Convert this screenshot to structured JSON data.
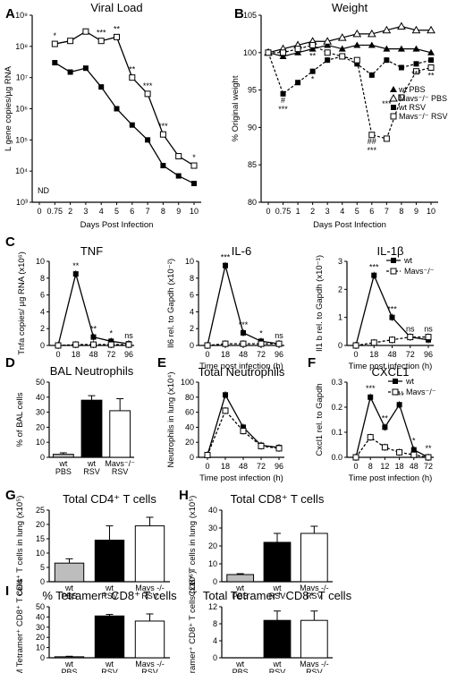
{
  "figure": {
    "panels": [
      "A",
      "B",
      "C",
      "D",
      "E",
      "F",
      "G",
      "H",
      "I"
    ]
  },
  "chart_data": [
    {
      "id": "A",
      "type": "line",
      "title": "Viral Load",
      "xlabel": "Days Post Infection",
      "ylabel": "L gene copies/µg RNA",
      "yscale": "log",
      "ylim": [
        1000,
        1000000000
      ],
      "yticks": [
        "10³",
        "10⁴",
        "10⁵",
        "10⁶",
        "10⁷",
        "10⁸",
        "10⁹"
      ],
      "categories": [
        "0",
        "0.75",
        "2",
        "3",
        "4",
        "5",
        "6",
        "7",
        "8",
        "9",
        "10"
      ],
      "series": [
        {
          "name": "wt",
          "values": [
            null,
            30000000,
            15000000,
            20000000,
            5000000,
            1000000,
            300000,
            100000,
            15000,
            7000,
            4000
          ],
          "marker": "filled"
        },
        {
          "name": "Mavs-/-",
          "values": [
            null,
            120000000,
            150000000,
            300000000,
            150000000,
            200000000,
            10000000,
            3000000,
            150000,
            30000,
            15000
          ],
          "marker": "open"
        }
      ],
      "annotations": [
        "ND",
        "*",
        "***",
        "**",
        "**",
        "***",
        "***",
        "*"
      ]
    },
    {
      "id": "B",
      "type": "line",
      "title": "Weight",
      "xlabel": "Days Post Infection",
      "ylabel": "% Original weight",
      "ylim": [
        80,
        105
      ],
      "yticks": [
        "80",
        "85",
        "90",
        "95",
        "100",
        "105"
      ],
      "categories": [
        "0",
        "0.75",
        "1",
        "2",
        "3",
        "4",
        "5",
        "6",
        "7",
        "8",
        "9",
        "10"
      ],
      "series": [
        {
          "name": "wt PBS",
          "values": [
            100,
            99.5,
            100,
            100.5,
            101,
            100.5,
            101,
            101,
            100.5,
            100.5,
            100.5,
            100
          ]
        },
        {
          "name": "Mavs-/- PBS",
          "values": [
            100,
            100.5,
            101,
            101.5,
            101.5,
            102,
            102.5,
            102.5,
            103,
            103.5,
            103,
            103
          ]
        },
        {
          "name": "wt RSV",
          "values": [
            100,
            94.5,
            96,
            97.5,
            99,
            99.5,
            98.5,
            97,
            99,
            98,
            98.5,
            99
          ]
        },
        {
          "name": "Mavs-/- RSV",
          "values": [
            100,
            100,
            100.5,
            101,
            100,
            99.5,
            99,
            89,
            88.5,
            94,
            97.5,
            98
          ]
        }
      ],
      "legend": [
        "wt PBS",
        "Mavs⁻/⁻ PBS",
        "wt RSV",
        "Mavs⁻/⁻ RSV"
      ],
      "legend_position": "right",
      "annotations": [
        "#",
        "***",
        "*",
        "**",
        "##",
        "***",
        "***",
        "***",
        "**"
      ]
    },
    {
      "id": "C1",
      "type": "line",
      "title": "TNF",
      "xlabel": "",
      "ylabel": "Tnfa copies/ µg RNA (x10⁶)",
      "ylim": [
        0,
        10
      ],
      "yticks": [
        "0",
        "2",
        "4",
        "6",
        "8",
        "10"
      ],
      "categories": [
        "0",
        "18",
        "48",
        "72",
        "96"
      ],
      "series": [
        {
          "name": "wt",
          "values": [
            0,
            8.5,
            1.0,
            0.5,
            0.2
          ]
        },
        {
          "name": "Mavs-/-",
          "values": [
            0,
            0.1,
            0.1,
            0.1,
            0.1
          ]
        }
      ],
      "annotations": [
        "**",
        "**",
        "*",
        "ns"
      ]
    },
    {
      "id": "C2",
      "type": "line",
      "title": "IL-6",
      "xlabel": "Time post infection (h)",
      "ylabel": "Il6 rel. to Gapdh (x10⁻²)",
      "ylim": [
        0,
        10
      ],
      "yticks": [
        "0",
        "2",
        "4",
        "6",
        "8",
        "10"
      ],
      "categories": [
        "0",
        "18",
        "48",
        "72",
        "96"
      ],
      "series": [
        {
          "name": "wt",
          "values": [
            0,
            9.5,
            1.5,
            0.5,
            0.2
          ]
        },
        {
          "name": "Mavs-/-",
          "values": [
            0,
            0.2,
            0.2,
            0.2,
            0.2
          ]
        }
      ],
      "annotations": [
        "***",
        "***",
        "*",
        "ns"
      ]
    },
    {
      "id": "C3",
      "type": "line",
      "title": "IL-1β",
      "xlabel": "Time post infection (h)",
      "ylabel": "Il1 b rel. to Gapdh (x10⁻¹)",
      "ylim": [
        0,
        3
      ],
      "yticks": [
        "0",
        "1",
        "2",
        "3"
      ],
      "categories": [
        "0",
        "18",
        "48",
        "72",
        "96"
      ],
      "series": [
        {
          "name": "wt",
          "values": [
            0,
            2.5,
            1.0,
            0.3,
            0.2
          ]
        },
        {
          "name": "Mavs-/-",
          "values": [
            0,
            0.1,
            0.2,
            0.3,
            0.3
          ]
        }
      ],
      "legend": [
        "wt",
        "Mavs⁻/⁻"
      ],
      "legend_position": "top-right",
      "annotations": [
        "***",
        "***",
        "ns",
        "ns"
      ]
    },
    {
      "id": "D",
      "type": "bar",
      "title": "BAL Neutrophils",
      "ylabel": "% of BAL cells",
      "ylim": [
        0,
        50
      ],
      "yticks": [
        "0",
        "10",
        "20",
        "30",
        "40",
        "50"
      ],
      "categories": [
        "wt PBS",
        "wt RSV",
        "Mavs⁻/⁻ RSV"
      ],
      "values": [
        2,
        38,
        31
      ],
      "errors": [
        1,
        3,
        8
      ]
    },
    {
      "id": "E",
      "type": "line",
      "title": "Total Neutrophils",
      "xlabel": "Time post infection (h)",
      "ylabel": "Neutrophils in lung (x10⁴)",
      "ylim": [
        0,
        100
      ],
      "yticks": [
        "0",
        "20",
        "40",
        "60",
        "80",
        "100"
      ],
      "categories": [
        "0",
        "18",
        "48",
        "72",
        "96"
      ],
      "series": [
        {
          "name": "wt",
          "values": [
            3,
            83,
            40,
            16,
            13
          ]
        },
        {
          "name": "Mavs-/-",
          "values": [
            3,
            62,
            35,
            15,
            12
          ]
        }
      ]
    },
    {
      "id": "F",
      "type": "line",
      "title": "CXCL1",
      "xlabel": "Time post infection (h)",
      "ylabel": "Cxcl1 rel. to Gapdh",
      "ylim": [
        0,
        0.3
      ],
      "yticks": [
        "0.0",
        "0.1",
        "0.2",
        "0.3"
      ],
      "categories": [
        "0",
        "8",
        "12",
        "18",
        "48",
        "72"
      ],
      "series": [
        {
          "name": "wt",
          "values": [
            0,
            0.24,
            0.12,
            0.21,
            0.03,
            0.0
          ]
        },
        {
          "name": "Mavs-/-",
          "values": [
            0,
            0.08,
            0.04,
            0.02,
            0.01,
            0.0
          ]
        }
      ],
      "legend": [
        "wt",
        "Mavs⁻/⁻"
      ],
      "legend_position": "top-right",
      "annotations": [
        "***",
        "**",
        "***",
        "*",
        "**"
      ]
    },
    {
      "id": "G",
      "type": "bar",
      "title": "Total CD4⁺ T cells",
      "ylabel": "CD4⁺ T cells in lung (x10⁵)",
      "ylim": [
        0,
        25
      ],
      "yticks": [
        "0",
        "5",
        "10",
        "15",
        "20",
        "25"
      ],
      "categories": [
        "wt PBS",
        "wt RSV",
        "Mavs -/- RSV"
      ],
      "values": [
        6.5,
        14.5,
        19.5
      ],
      "errors": [
        1.5,
        5,
        3
      ]
    },
    {
      "id": "H",
      "type": "bar",
      "title": "Total CD8⁺ T cells",
      "ylabel": "CD8⁺ T cells in lung (x10⁵)",
      "ylim": [
        0,
        40
      ],
      "yticks": [
        "0",
        "10",
        "20",
        "30",
        "40"
      ],
      "categories": [
        "wt PBS",
        "wt RSV",
        "Mavs -/- RSV"
      ],
      "values": [
        4,
        22,
        27
      ],
      "errors": [
        0.5,
        5,
        4
      ]
    },
    {
      "id": "I1",
      "type": "bar",
      "title": "% Tetramer⁺ CD8⁺ T cells",
      "ylabel": "% M Tetramer⁺ CD8⁺ T cells",
      "ylim": [
        0,
        50
      ],
      "yticks": [
        "0",
        "10",
        "20",
        "30",
        "40",
        "50"
      ],
      "categories": [
        "wt PBS",
        "wt RSV",
        "Mavs -/- RSV"
      ],
      "values": [
        1,
        41,
        36
      ],
      "errors": [
        0.5,
        1.5,
        7
      ]
    },
    {
      "id": "I2",
      "type": "bar",
      "title": "Total Tetramer⁺ CD8⁺ T cells",
      "ylabel": "M Tetramer⁺ CD8⁺ T cells (x10⁵)",
      "ylim": [
        0,
        12
      ],
      "yticks": [
        "0",
        "4",
        "8",
        "12"
      ],
      "categories": [
        "wt PBS",
        "wt RSV",
        "Mavs -/- RSV"
      ],
      "values": [
        0,
        8.8,
        8.8
      ],
      "errors": [
        0,
        2.2,
        2.2
      ]
    }
  ]
}
